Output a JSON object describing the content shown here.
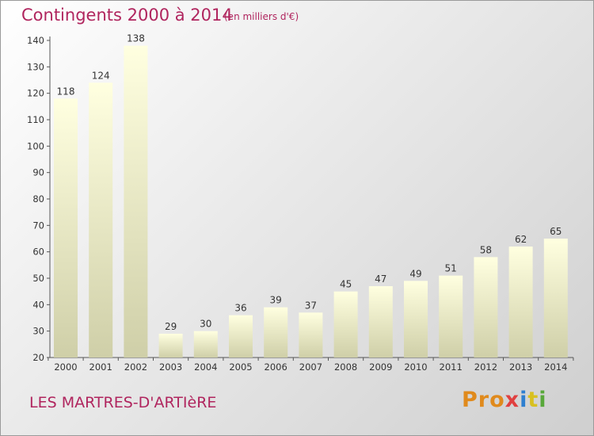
{
  "chart_data": {
    "type": "bar",
    "title": "Contingents 2000 à 2014",
    "subtitle": "(en milliers d'€)",
    "categories": [
      "2000",
      "2001",
      "2002",
      "2003",
      "2004",
      "2005",
      "2006",
      "2007",
      "2008",
      "2009",
      "2010",
      "2011",
      "2012",
      "2013",
      "2014"
    ],
    "values": [
      118,
      124,
      138,
      29,
      30,
      36,
      39,
      37,
      45,
      47,
      49,
      51,
      58,
      62,
      65
    ],
    "xlabel": "",
    "ylabel": "",
    "ylim": [
      20,
      140
    ],
    "yticks": [
      20,
      30,
      40,
      50,
      60,
      70,
      80,
      90,
      100,
      110,
      120,
      130,
      140
    ],
    "grid": false,
    "bar_color_top": "#ffffe0",
    "bar_color_bottom": "#cfcfa8"
  },
  "footer": {
    "commune": "LES MARTRES-D'ARTIèRE",
    "logo": [
      "Pro",
      "x",
      "i",
      "t",
      "i"
    ]
  }
}
